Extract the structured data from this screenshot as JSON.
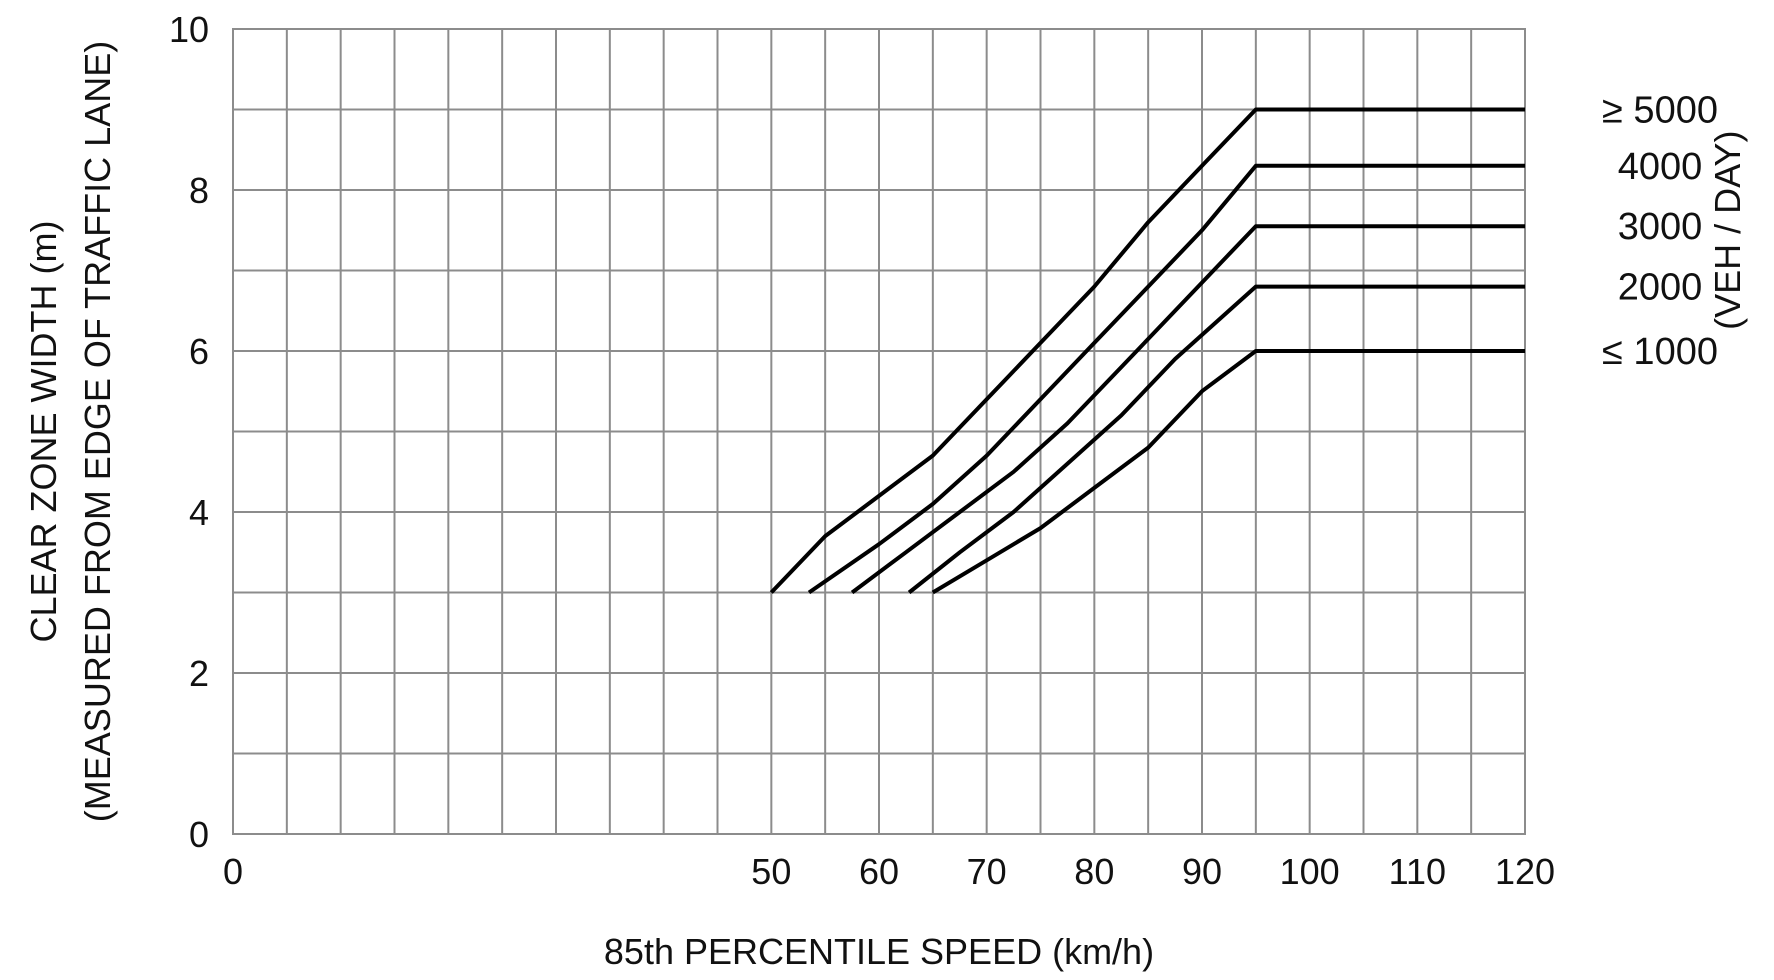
{
  "chart_data": {
    "type": "line",
    "xlabel": "85th PERCENTILE SPEED (km/h)",
    "ylabel_line1": "CLEAR ZONE WIDTH (m)",
    "ylabel_line2": "(MEASURED FROM EDGE OF TRAFFIC LANE)",
    "legend_title": "(VEH / DAY)",
    "xlim": [
      0,
      120
    ],
    "ylim": [
      0,
      10
    ],
    "x_ticks": [
      0,
      50,
      60,
      70,
      80,
      90,
      100,
      110,
      120
    ],
    "y_ticks": [
      0,
      2,
      4,
      6,
      8,
      10
    ],
    "x_grid_step": 5,
    "y_grid_step": 1,
    "grid": true,
    "legend_placement": "right",
    "series": [
      {
        "name": "≥ 5000",
        "points": [
          [
            50,
            3.0
          ],
          [
            55,
            3.7
          ],
          [
            60,
            4.2
          ],
          [
            65,
            4.7
          ],
          [
            70,
            5.4
          ],
          [
            75,
            6.1
          ],
          [
            80,
            6.8
          ],
          [
            85,
            7.6
          ],
          [
            90,
            8.3
          ],
          [
            95,
            9.0
          ],
          [
            120,
            9.0
          ]
        ]
      },
      {
        "name": "4000",
        "points": [
          [
            53.5,
            3.0
          ],
          [
            60,
            3.6
          ],
          [
            65,
            4.1
          ],
          [
            70,
            4.7
          ],
          [
            75,
            5.4
          ],
          [
            80,
            6.1
          ],
          [
            85,
            6.8
          ],
          [
            90,
            7.5
          ],
          [
            95,
            8.3
          ],
          [
            120,
            8.3
          ]
        ]
      },
      {
        "name": "3000",
        "points": [
          [
            57.5,
            3.0
          ],
          [
            62.5,
            3.5
          ],
          [
            67.5,
            4.0
          ],
          [
            72.5,
            4.5
          ],
          [
            77.5,
            5.1
          ],
          [
            82.5,
            5.8
          ],
          [
            87.5,
            6.5
          ],
          [
            92.5,
            7.2
          ],
          [
            95,
            7.55
          ],
          [
            120,
            7.55
          ]
        ]
      },
      {
        "name": "2000",
        "points": [
          [
            62.8,
            3.0
          ],
          [
            67.5,
            3.5
          ],
          [
            72.5,
            4.0
          ],
          [
            77.5,
            4.6
          ],
          [
            82.5,
            5.2
          ],
          [
            87.5,
            5.9
          ],
          [
            92.5,
            6.5
          ],
          [
            95,
            6.8
          ],
          [
            120,
            6.8
          ]
        ]
      },
      {
        "name": "≤ 1000",
        "points": [
          [
            65,
            3.0
          ],
          [
            70,
            3.4
          ],
          [
            75,
            3.8
          ],
          [
            80,
            4.3
          ],
          [
            85,
            4.8
          ],
          [
            90,
            5.5
          ],
          [
            95,
            6.0
          ],
          [
            120,
            6.0
          ]
        ]
      }
    ]
  }
}
